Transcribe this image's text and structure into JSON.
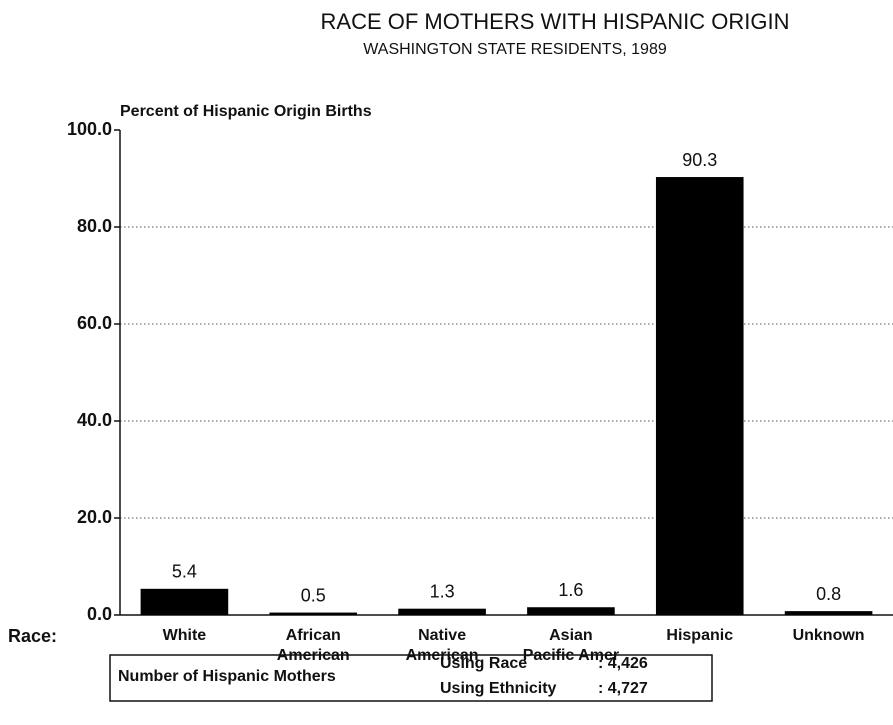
{
  "chart_data": {
    "type": "bar",
    "title": "RACE OF MOTHERS WITH HISPANIC ORIGIN",
    "subtitle": "WASHINGTON STATE RESIDENTS, 1989",
    "y_label": "Percent of Hispanic Origin Births",
    "x_label": "Race:",
    "categories": [
      "White",
      "African American",
      "Native American",
      "Asian Pacific Amer",
      "Hispanic",
      "Unknown"
    ],
    "values": [
      5.4,
      0.5,
      1.3,
      1.6,
      90.3,
      0.8
    ],
    "color": "#000000",
    "ylim": [
      0,
      100
    ],
    "yticks": [
      {
        "value": 0,
        "label": "0.0"
      },
      {
        "value": 20,
        "label": "20.0"
      },
      {
        "value": 40,
        "label": "40.0"
      },
      {
        "value": 60,
        "label": "60.0"
      },
      {
        "value": 80,
        "label": "80.0"
      },
      {
        "value": 100,
        "label": "100.0"
      }
    ],
    "grid": true,
    "note": {
      "label": "Number of Hispanic Mothers",
      "rows": [
        {
          "name": "Using Race",
          "value": ": 4,426"
        },
        {
          "name": "Using Ethnicity",
          "value": ": 4,727"
        }
      ]
    }
  }
}
